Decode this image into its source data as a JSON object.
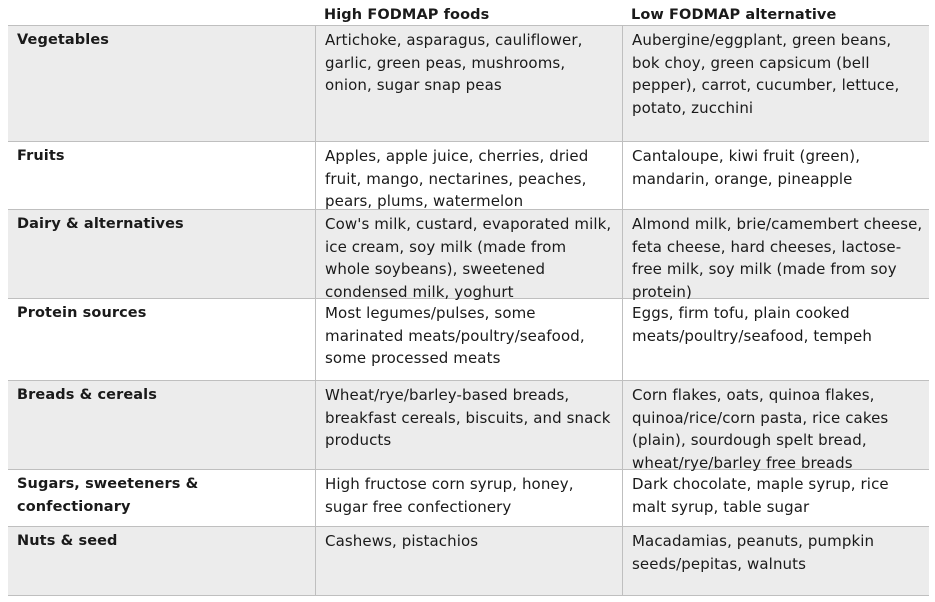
{
  "table": {
    "headers": [
      "",
      "High FODMAP foods",
      "Low FODMAP alternative"
    ],
    "rows": [
      {
        "category": "Vegetables",
        "high": "Artichoke, asparagus, cauliflower, garlic, green peas, mushrooms, onion, sugar snap peas",
        "low": "Aubergine/eggplant, green beans, bok choy, green capsicum (bell pepper), carrot, cucumber, lettuce, potato, zucchini"
      },
      {
        "category": "Fruits",
        "high": "Apples, apple juice, cherries, dried fruit, mango, nectarines, peaches, pears, plums, watermelon",
        "low": "Cantaloupe, kiwi fruit (green), mandarin, orange, pineapple"
      },
      {
        "category": "Dairy & alternatives",
        "high": "Cow's milk, custard, evaporated milk, ice cream, soy milk (made from whole soybeans), sweetened condensed milk, yoghurt",
        "low": "Almond milk, brie/camembert cheese, feta cheese, hard cheeses, lactose-free milk, soy milk (made from soy protein)"
      },
      {
        "category": "Protein sources",
        "high": "Most legumes/pulses, some marinated meats/poultry/seafood, some processed meats",
        "low": "Eggs, firm tofu, plain cooked meats/poultry/seafood, tempeh"
      },
      {
        "category": "Breads & cereals",
        "high": "Wheat/rye/barley-based breads, breakfast cereals, biscuits, and snack products",
        "low": "Corn flakes, oats, quinoa flakes, quinoa/rice/corn pasta, rice cakes (plain), sourdough spelt bread, wheat/rye/barley free breads"
      },
      {
        "category": "Sugars, sweeteners & confectionary",
        "high": "High fructose corn syrup, honey, sugar free confectionery",
        "low": "Dark chocolate, maple syrup, rice malt syrup, table sugar"
      },
      {
        "category": "Nuts & seed",
        "high": "Cashews, pistachios",
        "low": "Macadamias, peanuts, pumpkin seeds/pepitas, walnuts"
      }
    ]
  }
}
